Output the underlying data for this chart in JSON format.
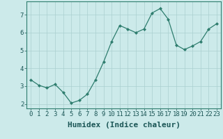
{
  "x": [
    0,
    1,
    2,
    3,
    4,
    5,
    6,
    7,
    8,
    9,
    10,
    11,
    12,
    13,
    14,
    15,
    16,
    17,
    18,
    19,
    20,
    21,
    22,
    23
  ],
  "y": [
    3.35,
    3.05,
    2.9,
    3.1,
    2.65,
    2.05,
    2.2,
    2.55,
    3.35,
    4.35,
    5.5,
    6.4,
    6.2,
    6.0,
    6.2,
    7.1,
    7.35,
    6.75,
    5.3,
    5.05,
    5.25,
    5.5,
    6.2,
    6.5
  ],
  "xlabel": "Humidex (Indice chaleur)",
  "line_color": "#2e7d6e",
  "marker_color": "#2e7d6e",
  "bg_color": "#cceaea",
  "grid_color": "#aacfcf",
  "ylim": [
    1.75,
    7.75
  ],
  "xlim": [
    -0.5,
    23.5
  ],
  "yticks": [
    2,
    3,
    4,
    5,
    6,
    7
  ],
  "xticks": [
    0,
    1,
    2,
    3,
    4,
    5,
    6,
    7,
    8,
    9,
    10,
    11,
    12,
    13,
    14,
    15,
    16,
    17,
    18,
    19,
    20,
    21,
    22,
    23
  ],
  "tick_fontsize": 6.5,
  "xlabel_fontsize": 8
}
